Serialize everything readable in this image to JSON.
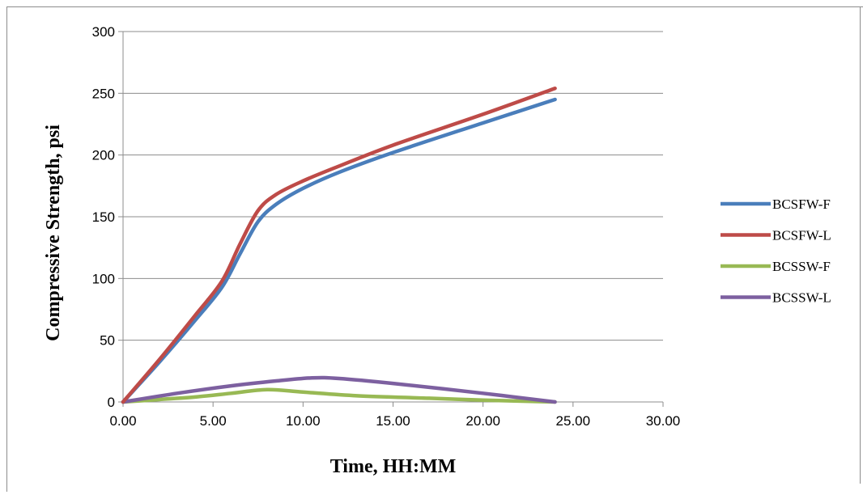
{
  "chart_data": {
    "type": "line",
    "title": "",
    "xlabel": "Time, HH:MM",
    "ylabel": "Compressive Strength, psi",
    "xlim": [
      0,
      30
    ],
    "ylim": [
      0,
      300
    ],
    "x_ticks": [
      "0.00",
      "5.00",
      "10.00",
      "15.00",
      "20.00",
      "25.00",
      "30.00"
    ],
    "y_ticks": [
      "0",
      "50",
      "100",
      "150",
      "200",
      "250",
      "300"
    ],
    "grid": "horizontal",
    "legend_position": "right",
    "series": [
      {
        "name": "BCSFW-F",
        "color": "#4a7ebb",
        "points": [
          [
            0,
            0
          ],
          [
            2,
            32
          ],
          [
            4,
            66
          ],
          [
            5.5,
            93
          ],
          [
            6.5,
            120
          ],
          [
            7.5,
            146
          ],
          [
            8.5,
            160
          ],
          [
            10,
            173
          ],
          [
            12,
            186
          ],
          [
            15,
            202
          ],
          [
            20,
            226
          ],
          [
            24,
            245
          ]
        ]
      },
      {
        "name": "BCSFW-L",
        "color": "#be4b48",
        "points": [
          [
            0,
            0
          ],
          [
            2,
            34
          ],
          [
            4,
            70
          ],
          [
            5.5,
            98
          ],
          [
            6.5,
            128
          ],
          [
            7.5,
            155
          ],
          [
            8.5,
            168
          ],
          [
            10,
            179
          ],
          [
            12,
            191
          ],
          [
            15,
            208
          ],
          [
            20,
            233
          ],
          [
            24,
            254
          ]
        ]
      },
      {
        "name": "BCSSW-F",
        "color": "#98b954",
        "points": [
          [
            0,
            0
          ],
          [
            2,
            2
          ],
          [
            4,
            4
          ],
          [
            6,
            7
          ],
          [
            8,
            10
          ],
          [
            10,
            8
          ],
          [
            13,
            5
          ],
          [
            17,
            3
          ],
          [
            20,
            1.5
          ],
          [
            24,
            0
          ]
        ]
      },
      {
        "name": "BCSSW-L",
        "color": "#7d60a0",
        "points": [
          [
            0,
            0
          ],
          [
            3,
            7
          ],
          [
            6,
            13
          ],
          [
            8.5,
            17
          ],
          [
            10.5,
            19.5
          ],
          [
            12,
            19
          ],
          [
            15,
            15
          ],
          [
            20,
            7
          ],
          [
            24,
            0
          ]
        ]
      }
    ]
  }
}
